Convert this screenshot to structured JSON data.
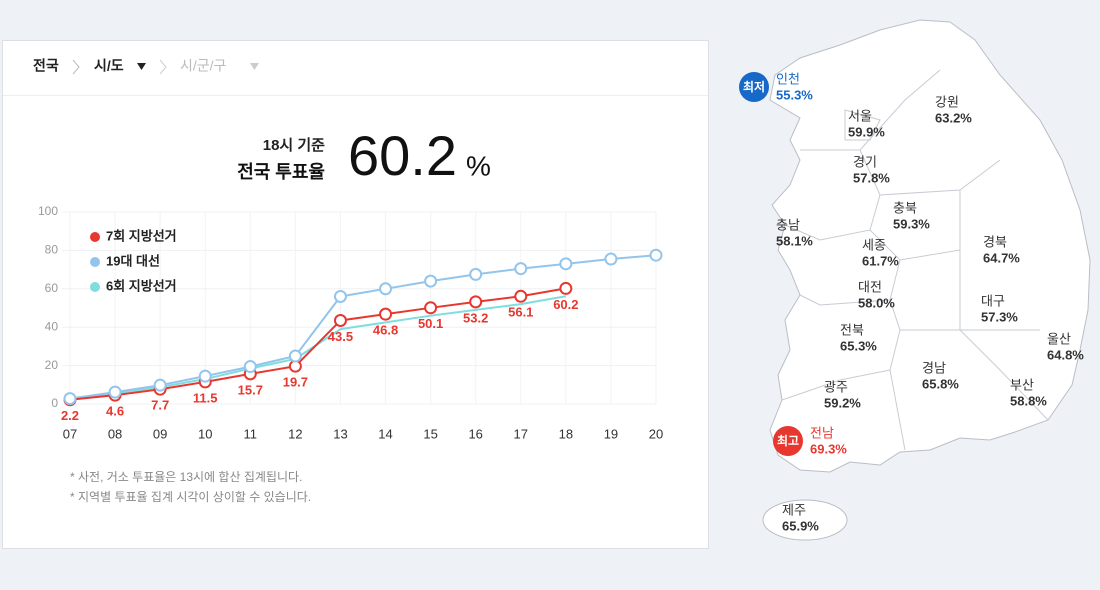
{
  "breadcrumb": {
    "level1": "전국",
    "level2": "시/도",
    "level3": "시/군/구"
  },
  "headline": {
    "time": "18시 기준",
    "label": "전국 투표율",
    "value": "60.2",
    "unit": "%"
  },
  "chart_data": {
    "type": "line",
    "categories": [
      "07",
      "08",
      "09",
      "10",
      "11",
      "12",
      "13",
      "14",
      "15",
      "16",
      "17",
      "18",
      "19",
      "20"
    ],
    "series": [
      {
        "name": "7회 지방선거",
        "color": "#e8372f",
        "marker": true,
        "labels": true,
        "values": [
          2.2,
          4.6,
          7.7,
          11.5,
          15.7,
          19.7,
          43.5,
          46.8,
          50.1,
          53.2,
          56.1,
          60.2,
          null,
          null
        ]
      },
      {
        "name": "19대 대선",
        "color": "#93c5ec",
        "marker": true,
        "labels": false,
        "values": [
          2.8,
          6.2,
          9.8,
          14.5,
          19.5,
          25,
          56,
          60,
          64,
          67.5,
          70.5,
          73,
          75.5,
          77.5
        ]
      },
      {
        "name": "6회 지방선거",
        "color": "#7fdde0",
        "marker": false,
        "labels": false,
        "values": [
          2.6,
          5.5,
          8.8,
          13,
          18.5,
          23.5,
          39,
          42.5,
          46,
          49,
          52,
          56.1,
          null,
          null
        ]
      }
    ],
    "ylim": [
      0,
      100
    ],
    "yticks": [
      0,
      20,
      40,
      60,
      80,
      100
    ],
    "grid": true
  },
  "notes": [
    "* 사전, 거소 투표율은 13시에 합산 집계됩니다.",
    "* 지역별 투표율 집계 시각이 상이할 수 있습니다."
  ],
  "map": {
    "low_badge": "최저",
    "high_badge": "최고",
    "regions": [
      {
        "name": "인천",
        "value": "55.3%"
      },
      {
        "name": "서울",
        "value": "59.9%"
      },
      {
        "name": "강원",
        "value": "63.2%"
      },
      {
        "name": "경기",
        "value": "57.8%"
      },
      {
        "name": "충북",
        "value": "59.3%"
      },
      {
        "name": "충남",
        "value": "58.1%"
      },
      {
        "name": "세종",
        "value": "61.7%"
      },
      {
        "name": "경북",
        "value": "64.7%"
      },
      {
        "name": "대전",
        "value": "58.0%"
      },
      {
        "name": "대구",
        "value": "57.3%"
      },
      {
        "name": "전북",
        "value": "65.3%"
      },
      {
        "name": "울산",
        "value": "64.8%"
      },
      {
        "name": "경남",
        "value": "65.8%"
      },
      {
        "name": "광주",
        "value": "59.2%"
      },
      {
        "name": "부산",
        "value": "58.8%"
      },
      {
        "name": "전남",
        "value": "69.3%"
      },
      {
        "name": "제주",
        "value": "65.9%"
      }
    ]
  }
}
